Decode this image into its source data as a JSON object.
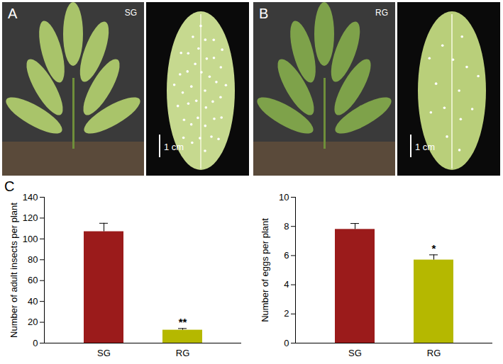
{
  "figure_panels": [
    {
      "label": "A",
      "group": "SG",
      "scale_bar": "1 cm"
    },
    {
      "label": "B",
      "group": "RG",
      "scale_bar": "1 cm"
    }
  ],
  "chart_panel": "C",
  "chart_data": [
    {
      "type": "bar",
      "ylabel": "Number of adult insects per plant",
      "categories": [
        "SG",
        "RG"
      ],
      "values": [
        107,
        12.5
      ],
      "error": [
        8,
        1.5
      ],
      "colors": [
        "#9b1b1b",
        "#b5b800"
      ],
      "ylim": [
        0,
        140
      ],
      "yticks": [
        0,
        20,
        40,
        60,
        80,
        100,
        120,
        140
      ],
      "annotations": [
        {
          "category": "RG",
          "text": "**"
        }
      ]
    },
    {
      "type": "bar",
      "ylabel": "Number of eggs per plant",
      "categories": [
        "SG",
        "RG"
      ],
      "values": [
        7.8,
        5.7
      ],
      "error": [
        0.4,
        0.35
      ],
      "colors": [
        "#9b1b1b",
        "#b5b800"
      ],
      "ylim": [
        0,
        10
      ],
      "yticks": [
        0,
        2,
        4,
        6,
        8,
        10
      ],
      "annotations": [
        {
          "category": "RG",
          "text": "*"
        }
      ]
    }
  ]
}
